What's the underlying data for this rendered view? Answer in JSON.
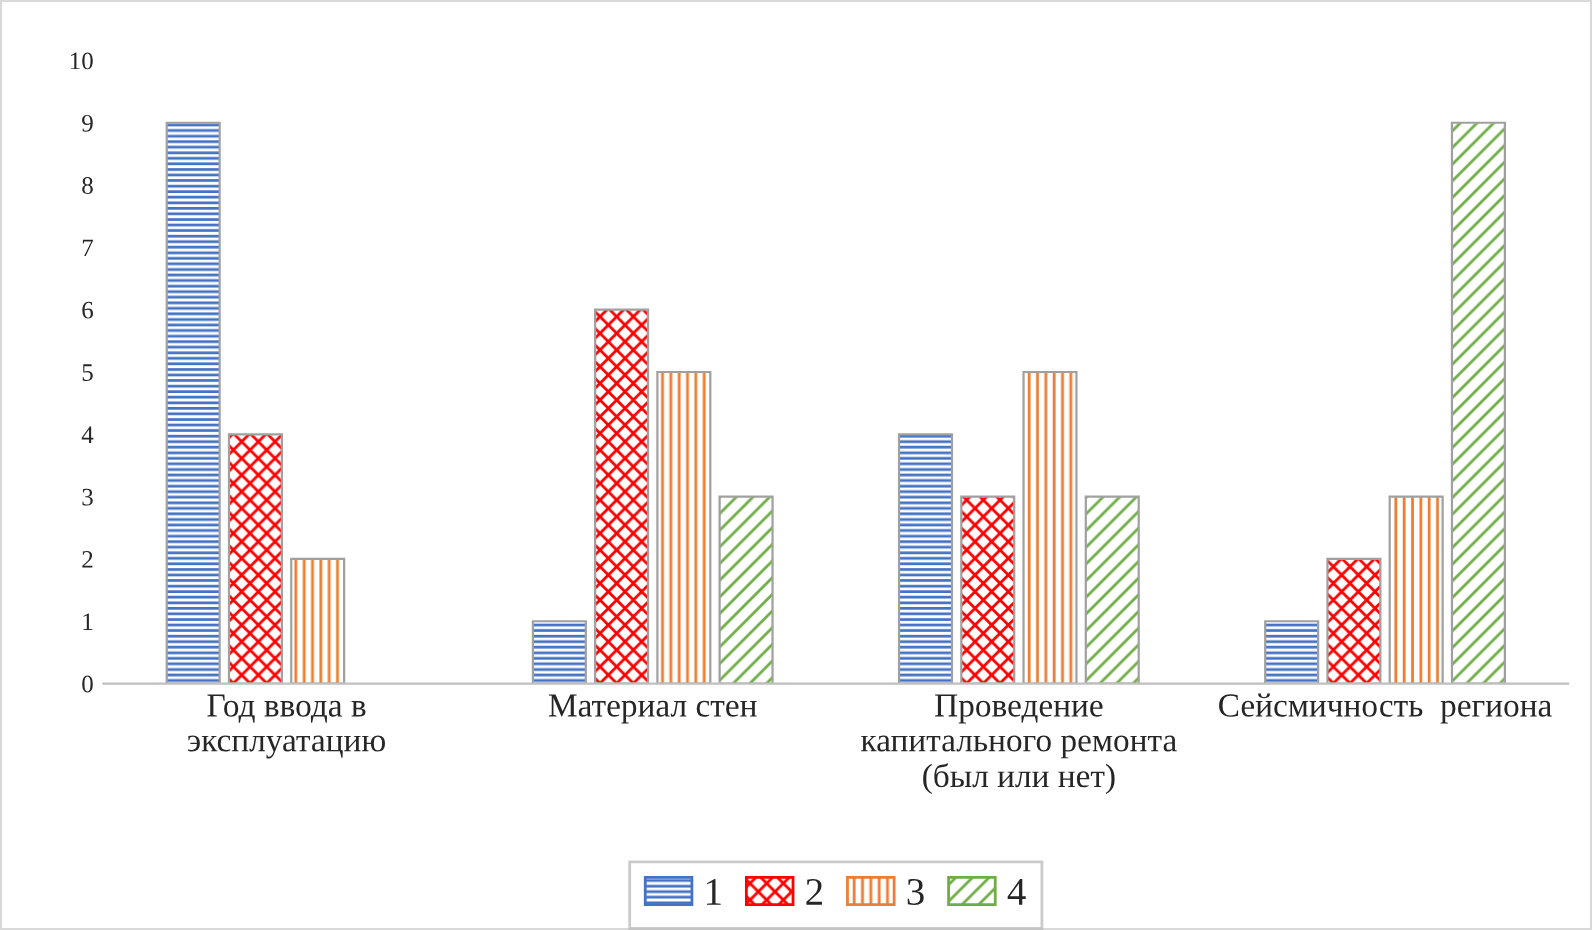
{
  "chart_data": {
    "type": "bar",
    "categories": [
      "Год ввода в\nэксплуатацию",
      "Материал стен",
      "Проведение\nкапитального ремонта\n(был или нет)",
      "Сейсмичность  региона"
    ],
    "series": [
      {
        "name": "1",
        "color": "#4472c4",
        "values": [
          9,
          1,
          4,
          1
        ]
      },
      {
        "name": "2",
        "color": "#ff0000",
        "values": [
          4,
          6,
          3,
          2
        ]
      },
      {
        "name": "3",
        "color": "#ed7d31",
        "values": [
          2,
          5,
          5,
          3
        ]
      },
      {
        "name": "4",
        "color": "#70ad47",
        "values": [
          null,
          3,
          3,
          9
        ]
      }
    ],
    "ylim": [
      0,
      10
    ],
    "yticks": [
      0,
      1,
      2,
      3,
      4,
      5,
      6,
      7,
      8,
      9,
      10
    ],
    "grid": false,
    "legend": "bottom"
  }
}
